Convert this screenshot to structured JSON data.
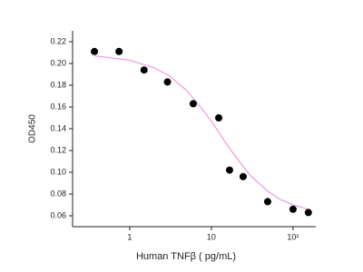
{
  "chart_data": {
    "type": "scatter",
    "xlabel": "Human TNFβ ( pg/mL)",
    "ylabel": "OD450",
    "xscale": "log",
    "xlim": [
      0.2,
      190
    ],
    "ylim": [
      0.05,
      0.23
    ],
    "xticks": [
      1,
      10,
      {
        "value": 100,
        "label": "10²"
      }
    ],
    "yticks": [
      0.06,
      0.08,
      {
        "value": 0.1,
        "label": "0.10"
      },
      0.12,
      0.14,
      0.16,
      0.18,
      {
        "value": 0.2,
        "label": "0.20"
      },
      0.22
    ],
    "series": [
      {
        "type": "scatter",
        "color": "#000000",
        "x": [
          0.37,
          0.74,
          1.5,
          2.9,
          6,
          12.3,
          16.7,
          24.5,
          48.9,
          100,
          154
        ],
        "values": [
          0.211,
          0.211,
          0.194,
          0.183,
          0.163,
          0.15,
          0.102,
          0.096,
          0.073,
          0.066,
          0.063
        ]
      },
      {
        "type": "line",
        "color": "#ee88dd",
        "x": [
          0.37,
          1,
          2,
          3,
          5,
          7,
          10,
          15,
          20,
          30,
          50,
          70,
          100,
          154
        ],
        "values": [
          0.207,
          0.203,
          0.196,
          0.189,
          0.175,
          0.162,
          0.147,
          0.127,
          0.114,
          0.097,
          0.082,
          0.075,
          0.07,
          0.066
        ]
      }
    ]
  }
}
